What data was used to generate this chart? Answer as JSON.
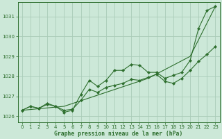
{
  "background_color": "#cce8d8",
  "grid_color": "#aaccb8",
  "line_color": "#2d6e2d",
  "xlabel": "Graphe pression niveau de la mer (hPa)",
  "ylim": [
    1025.7,
    1031.7
  ],
  "xlim": [
    -0.5,
    23.5
  ],
  "xticks": [
    0,
    1,
    2,
    3,
    4,
    5,
    6,
    7,
    8,
    9,
    10,
    11,
    12,
    13,
    14,
    15,
    16,
    17,
    18,
    19,
    20,
    21,
    22,
    23
  ],
  "yticks": [
    1026,
    1027,
    1028,
    1029,
    1030,
    1031
  ],
  "series": [
    {
      "x": [
        0,
        5,
        10,
        15,
        20,
        23
      ],
      "y": [
        1026.3,
        1026.5,
        1027.2,
        1027.9,
        1029.0,
        1031.5
      ],
      "has_markers": false
    },
    {
      "x": [
        0,
        1,
        2,
        3,
        4,
        5,
        6,
        7,
        8,
        9,
        10,
        11,
        12,
        13,
        14,
        15,
        16,
        17,
        18,
        19,
        20,
        21,
        22,
        23
      ],
      "y": [
        1026.3,
        1026.5,
        1026.4,
        1026.6,
        1026.5,
        1026.2,
        1026.3,
        1027.1,
        1027.8,
        1027.5,
        1027.8,
        1028.3,
        1028.3,
        1028.6,
        1028.55,
        1028.2,
        1028.2,
        1027.9,
        1028.05,
        1028.2,
        1028.8,
        1030.4,
        1031.3,
        1031.5
      ],
      "has_markers": true
    },
    {
      "x": [
        0,
        1,
        2,
        3,
        4,
        5,
        6,
        7,
        8,
        9,
        10,
        11,
        12,
        13,
        14,
        15,
        16,
        17,
        18,
        19,
        20,
        21,
        22,
        23
      ],
      "y": [
        1026.3,
        1026.5,
        1026.4,
        1026.65,
        1026.5,
        1026.3,
        1026.35,
        1026.8,
        1027.35,
        1027.2,
        1027.45,
        1027.55,
        1027.65,
        1027.85,
        1027.8,
        1027.95,
        1028.1,
        1027.75,
        1027.65,
        1027.9,
        1028.3,
        1028.75,
        1029.1,
        1029.5
      ],
      "has_markers": true
    }
  ]
}
